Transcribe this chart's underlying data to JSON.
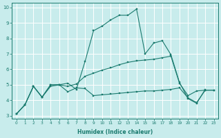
{
  "xlabel": "Humidex (Indice chaleur)",
  "bg_color": "#c8ecec",
  "grid_color": "#ffffff",
  "line_color": "#1a7a6e",
  "xlim": [
    -0.5,
    23.5
  ],
  "ylim": [
    2.8,
    10.3
  ],
  "xticks": [
    0,
    1,
    2,
    3,
    4,
    5,
    6,
    7,
    8,
    9,
    10,
    11,
    12,
    13,
    14,
    15,
    16,
    17,
    18,
    19,
    20,
    21,
    22,
    23
  ],
  "yticks": [
    3,
    4,
    5,
    6,
    7,
    8,
    9,
    10
  ],
  "series1_x": [
    0,
    1,
    2,
    3,
    4,
    5,
    6,
    7,
    8,
    9,
    10,
    11,
    12,
    13,
    14,
    15,
    16,
    17,
    18,
    19,
    20,
    21,
    22
  ],
  "series1_y": [
    3.1,
    3.7,
    4.9,
    4.2,
    4.9,
    5.0,
    5.1,
    4.7,
    6.5,
    8.5,
    8.8,
    9.2,
    9.5,
    9.5,
    9.9,
    7.0,
    7.7,
    7.85,
    6.95,
    5.15,
    4.1,
    3.8,
    4.7
  ],
  "series2_x": [
    0,
    1,
    2,
    3,
    4,
    5,
    6,
    7,
    8,
    9,
    10,
    11,
    12,
    13,
    14,
    15,
    16,
    17,
    18,
    19,
    20,
    21,
    22,
    23
  ],
  "series2_y": [
    3.1,
    3.7,
    4.9,
    4.2,
    5.0,
    5.0,
    4.9,
    5.05,
    5.55,
    5.75,
    5.95,
    6.1,
    6.3,
    6.45,
    6.55,
    6.6,
    6.65,
    6.75,
    6.85,
    5.1,
    4.3,
    4.6,
    4.65,
    4.65
  ],
  "series3_x": [
    0,
    1,
    2,
    3,
    4,
    5,
    6,
    7,
    8,
    9,
    10,
    11,
    12,
    13,
    14,
    15,
    16,
    17,
    18,
    19,
    20,
    21,
    22,
    23
  ],
  "series3_y": [
    3.1,
    3.7,
    4.9,
    4.2,
    5.0,
    5.0,
    4.55,
    4.8,
    4.75,
    4.3,
    4.35,
    4.4,
    4.45,
    4.5,
    4.55,
    4.6,
    4.6,
    4.65,
    4.7,
    4.8,
    4.15,
    3.85,
    4.65,
    4.65
  ]
}
